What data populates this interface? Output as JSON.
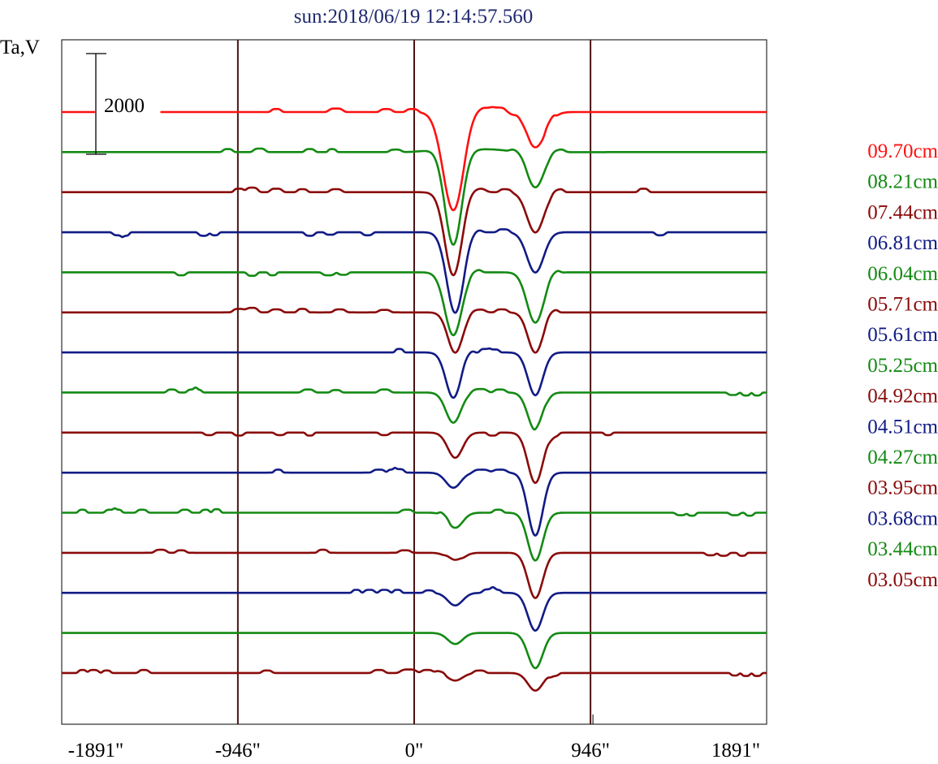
{
  "chart_data": {
    "type": "line",
    "title": "sun:2018/06/19 12:14:57.560",
    "ylabel": "Ta,V",
    "xlim": [
      -1891,
      1891
    ],
    "x_ticks": [
      {
        "value": -1891,
        "label": "-1891\""
      },
      {
        "value": -946,
        "label": "-946\""
      },
      {
        "value": 0,
        "label": "0\""
      },
      {
        "value": 946,
        "label": "946\""
      },
      {
        "value": 1891,
        "label": "1891\""
      }
    ],
    "vertical_lines": [
      -946,
      0,
      946
    ],
    "scale_bar": {
      "value": 2000,
      "label": "2000"
    },
    "y_step": 1000,
    "grid": false,
    "legend_position": "right",
    "colors": {
      "red": "#ff1010",
      "green": "#138a13",
      "darkred": "#8a0a0a",
      "blue": "#111b85",
      "frame": "#000000",
      "divider": "#4a1414",
      "title": "#1f2a6e"
    },
    "series": [
      {
        "name": "09.70cm",
        "color": "red",
        "dips": [
          [
            210,
            1950,
            55
          ],
          [
            650,
            700,
            55
          ]
        ],
        "humps": [
          [
            -1540,
            60,
            30
          ],
          [
            -740,
            60,
            25
          ],
          [
            -420,
            70,
            35
          ],
          [
            -150,
            60,
            30
          ],
          [
            -10,
            60,
            30
          ],
          [
            340,
            110,
            60
          ],
          [
            450,
            90,
            40
          ],
          [
            580,
            80,
            35
          ],
          [
            730,
            80,
            25
          ]
        ]
      },
      {
        "name": "08.21cm",
        "color": "green",
        "dips": [
          [
            210,
            1900,
            45
          ],
          [
            650,
            700,
            45
          ]
        ],
        "humps": [
          [
            -1000,
            60,
            25
          ],
          [
            -830,
            70,
            30
          ],
          [
            -560,
            60,
            25
          ],
          [
            -440,
            60,
            20
          ],
          [
            -100,
            50,
            30
          ],
          [
            280,
            60,
            200
          ],
          [
            560,
            60,
            40
          ],
          [
            770,
            60,
            35
          ]
        ]
      },
      {
        "name": "07.44cm",
        "color": "darkred",
        "dips": [
          [
            210,
            1650,
            45
          ],
          [
            650,
            800,
            45
          ]
        ],
        "humps": [
          [
            -940,
            70,
            25
          ],
          [
            -870,
            90,
            30
          ],
          [
            -740,
            70,
            30
          ],
          [
            -600,
            60,
            25
          ],
          [
            -420,
            60,
            30
          ],
          [
            330,
            80,
            50
          ],
          [
            490,
            60,
            30
          ],
          [
            770,
            70,
            30
          ],
          [
            1230,
            70,
            25
          ]
        ]
      },
      {
        "name": "06.81cm",
        "color": "blue",
        "dips": [
          [
            220,
            1600,
            45
          ],
          [
            650,
            800,
            45
          ]
        ],
        "humps": [
          [
            -1590,
            -60,
            25
          ],
          [
            -1550,
            -70,
            20
          ],
          [
            -1130,
            -70,
            25
          ],
          [
            -1070,
            -60,
            20
          ],
          [
            -560,
            -70,
            25
          ],
          [
            -450,
            -50,
            25
          ],
          [
            -250,
            -60,
            25
          ],
          [
            320,
            70,
            40
          ],
          [
            480,
            60,
            30
          ],
          [
            1320,
            -60,
            25
          ]
        ]
      },
      {
        "name": "06.04cm",
        "color": "green",
        "dips": [
          [
            210,
            1250,
            45
          ],
          [
            650,
            1000,
            45
          ]
        ],
        "humps": [
          [
            -1250,
            -60,
            25
          ],
          [
            -870,
            -70,
            25
          ],
          [
            -760,
            -60,
            20
          ],
          [
            -460,
            -60,
            30
          ],
          [
            -380,
            -50,
            25
          ],
          [
            330,
            60,
            30
          ],
          [
            750,
            60,
            30
          ]
        ]
      },
      {
        "name": "05.71cm",
        "color": "darkred",
        "dips": [
          [
            220,
            800,
            40
          ],
          [
            650,
            800,
            40
          ]
        ],
        "humps": [
          [
            -940,
            70,
            30
          ],
          [
            -870,
            90,
            30
          ],
          [
            -740,
            60,
            30
          ],
          [
            -600,
            70,
            25
          ],
          [
            -400,
            60,
            30
          ],
          [
            -160,
            50,
            30
          ],
          [
            340,
            60,
            40
          ],
          [
            470,
            60,
            30
          ],
          [
            740,
            70,
            30
          ]
        ]
      },
      {
        "name": "05.61cm",
        "color": "blue",
        "dips": [
          [
            210,
            900,
            40
          ],
          [
            650,
            850,
            40
          ]
        ],
        "humps": [
          [
            -80,
            70,
            20
          ],
          [
            290,
            60,
            30
          ],
          [
            380,
            70,
            25
          ],
          [
            430,
            60,
            25
          ]
        ]
      },
      {
        "name": "05.25cm",
        "color": "green",
        "dips": [
          [
            210,
            600,
            40
          ],
          [
            650,
            750,
            40
          ]
        ],
        "humps": [
          [
            -1300,
            60,
            25
          ],
          [
            -1190,
            60,
            25
          ],
          [
            -1160,
            50,
            20
          ],
          [
            -570,
            60,
            30
          ],
          [
            -420,
            50,
            25
          ],
          [
            -160,
            60,
            30
          ],
          [
            350,
            70,
            40
          ],
          [
            460,
            60,
            30
          ],
          [
            680,
            60,
            25
          ],
          [
            1710,
            -50,
            25
          ],
          [
            1780,
            -60,
            20
          ],
          [
            1840,
            -60,
            20
          ]
        ]
      },
      {
        "name": "04.92cm",
        "color": "darkred",
        "dips": [
          [
            220,
            500,
            40
          ],
          [
            650,
            1000,
            40
          ]
        ],
        "humps": [
          [
            -1100,
            -50,
            25
          ],
          [
            -940,
            -60,
            25
          ],
          [
            -720,
            -50,
            25
          ],
          [
            -560,
            -60,
            20
          ],
          [
            -160,
            -50,
            25
          ],
          [
            420,
            -60,
            25
          ],
          [
            750,
            -60,
            25
          ],
          [
            1040,
            -50,
            20
          ]
        ]
      },
      {
        "name": "04.51cm",
        "color": "blue",
        "dips": [
          [
            210,
            300,
            40
          ],
          [
            650,
            1250,
            40
          ]
        ],
        "humps": [
          [
            -730,
            60,
            20
          ],
          [
            -190,
            60,
            30
          ],
          [
            -120,
            60,
            20
          ],
          [
            -80,
            70,
            25
          ],
          [
            360,
            60,
            40
          ],
          [
            460,
            60,
            35
          ]
        ]
      },
      {
        "name": "04.27cm",
        "color": "green",
        "dips": [
          [
            220,
            300,
            40
          ],
          [
            650,
            950,
            40
          ]
        ],
        "humps": [
          [
            -1780,
            60,
            20
          ],
          [
            -1630,
            60,
            25
          ],
          [
            -1590,
            60,
            20
          ],
          [
            -1460,
            60,
            25
          ],
          [
            -1230,
            60,
            25
          ],
          [
            -1120,
            60,
            20
          ],
          [
            -1060,
            70,
            20
          ],
          [
            -40,
            60,
            30
          ],
          [
            160,
            60,
            25
          ],
          [
            450,
            60,
            25
          ],
          [
            1430,
            -50,
            25
          ],
          [
            1490,
            -60,
            20
          ],
          [
            1720,
            -50,
            25
          ],
          [
            1800,
            -60,
            20
          ]
        ]
      },
      {
        "name": "03.95cm",
        "color": "darkred",
        "dips": [
          [
            220,
            200,
            40
          ],
          [
            650,
            900,
            40
          ]
        ],
        "humps": [
          [
            -1360,
            60,
            30
          ],
          [
            -1250,
            50,
            25
          ],
          [
            -490,
            60,
            25
          ],
          [
            -50,
            50,
            30
          ],
          [
            210,
            60,
            40
          ],
          [
            1590,
            -50,
            25
          ],
          [
            1660,
            -60,
            25
          ],
          [
            1760,
            -60,
            20
          ]
        ]
      },
      {
        "name": "03.68cm",
        "color": "blue",
        "dips": [
          [
            220,
            250,
            40
          ],
          [
            650,
            750,
            40
          ]
        ],
        "humps": [
          [
            -310,
            60,
            20
          ],
          [
            -240,
            60,
            25
          ],
          [
            -160,
            60,
            25
          ],
          [
            -90,
            60,
            20
          ],
          [
            80,
            50,
            25
          ],
          [
            400,
            70,
            30
          ],
          [
            440,
            60,
            25
          ]
        ]
      },
      {
        "name": "03.44cm",
        "color": "green",
        "dips": [
          [
            220,
            220,
            40
          ],
          [
            650,
            700,
            40
          ]
        ],
        "humps": []
      },
      {
        "name": "03.05cm",
        "color": "darkred",
        "dips": [
          [
            220,
            150,
            40
          ],
          [
            650,
            350,
            40
          ]
        ],
        "humps": [
          [
            -1780,
            60,
            20
          ],
          [
            -1720,
            60,
            25
          ],
          [
            -1650,
            50,
            20
          ],
          [
            -1450,
            60,
            25
          ],
          [
            -790,
            50,
            25
          ],
          [
            -190,
            60,
            30
          ],
          [
            -30,
            70,
            40
          ],
          [
            70,
            60,
            30
          ],
          [
            140,
            50,
            25
          ],
          [
            350,
            50,
            30
          ],
          [
            750,
            -50,
            25
          ],
          [
            1720,
            -50,
            20
          ],
          [
            1780,
            -60,
            20
          ],
          [
            1840,
            -60,
            20
          ]
        ]
      }
    ]
  }
}
